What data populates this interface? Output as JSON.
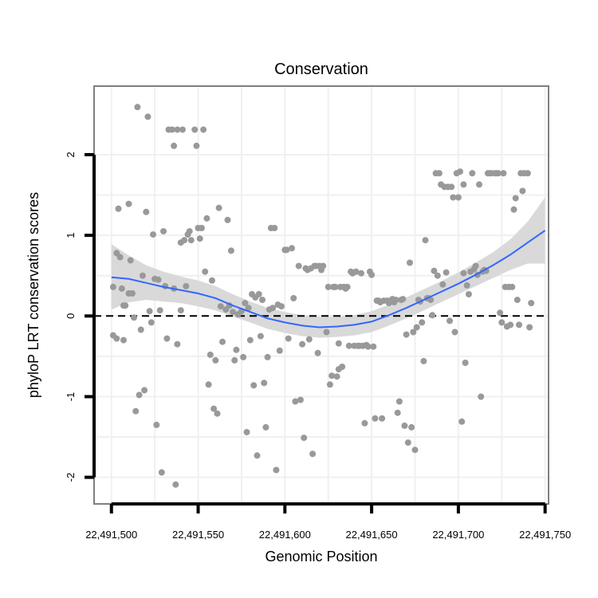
{
  "chart_data": {
    "type": "scatter",
    "title": "Conservation",
    "xlabel": "Genomic Position",
    "ylabel": "phyloP LRT conservation scores",
    "xlim": [
      22491490,
      22491752
    ],
    "ylim": [
      -2.33,
      2.85
    ],
    "x_ticks": [
      {
        "value": 22491500,
        "label": "22,491,500"
      },
      {
        "value": 22491550,
        "label": "22,491,550"
      },
      {
        "value": 22491600,
        "label": "22,491,600"
      },
      {
        "value": 22491650,
        "label": "22,491,650"
      },
      {
        "value": 22491700,
        "label": "22,491,700"
      },
      {
        "value": 22491750,
        "label": "22,491,750"
      }
    ],
    "y_ticks": [
      {
        "value": -2,
        "label": "-2"
      },
      {
        "value": -1,
        "label": "-1"
      },
      {
        "value": 0,
        "label": "0"
      },
      {
        "value": 1,
        "label": "1"
      },
      {
        "value": 2,
        "label": "2"
      }
    ],
    "reference_line": {
      "y": 0,
      "style": "dashed"
    },
    "grid": true,
    "colors": {
      "points": "#999999",
      "smooth_line": "#3366ff",
      "confidence_band": "#d9d9d9",
      "frame": "#7f7f7f",
      "grid": "#f0f0f0"
    },
    "points": [
      [
        22491501,
        0.36
      ],
      [
        22491501,
        -0.24
      ],
      [
        22491503,
        -0.28
      ],
      [
        22491503,
        0.78
      ],
      [
        22491504,
        1.33
      ],
      [
        22491505,
        0.73
      ],
      [
        22491506,
        0.34
      ],
      [
        22491507,
        -0.3
      ],
      [
        22491507,
        0.13
      ],
      [
        22491508,
        0.13
      ],
      [
        22491510,
        1.39
      ],
      [
        22491510,
        0.28
      ],
      [
        22491511,
        0.69
      ],
      [
        22491512,
        0.28
      ],
      [
        22491513,
        -0.02
      ],
      [
        22491514,
        -1.18
      ],
      [
        22491515,
        2.59
      ],
      [
        22491516,
        -0.98
      ],
      [
        22491517,
        -0.17
      ],
      [
        22491518,
        0.5
      ],
      [
        22491519,
        -0.92
      ],
      [
        22491520,
        1.29
      ],
      [
        22491521,
        2.47
      ],
      [
        22491522,
        0.06
      ],
      [
        22491523,
        -0.08
      ],
      [
        22491524,
        1.01
      ],
      [
        22491525,
        0.46
      ],
      [
        22491526,
        -1.35
      ],
      [
        22491527,
        0.45
      ],
      [
        22491528,
        0.07
      ],
      [
        22491529,
        -1.94
      ],
      [
        22491530,
        1.05
      ],
      [
        22491531,
        0.37
      ],
      [
        22491532,
        -0.28
      ],
      [
        22491533,
        2.31
      ],
      [
        22491535,
        2.31
      ],
      [
        22491536,
        2.11
      ],
      [
        22491536,
        0.34
      ],
      [
        22491537,
        -2.09
      ],
      [
        22491538,
        2.31
      ],
      [
        22491538,
        -0.35
      ],
      [
        22491540,
        0.07
      ],
      [
        22491540,
        0.91
      ],
      [
        22491542,
        0.94
      ],
      [
        22491541,
        2.31
      ],
      [
        22491543,
        0.37
      ],
      [
        22491544,
        1.01
      ],
      [
        22491545,
        1.05
      ],
      [
        22491546,
        0.94
      ],
      [
        22491548,
        2.31
      ],
      [
        22491549,
        2.11
      ],
      [
        22491550,
        1.09
      ],
      [
        22491551,
        0.96
      ],
      [
        22491552,
        1.09
      ],
      [
        22491553,
        2.31
      ],
      [
        22491554,
        0.55
      ],
      [
        22491555,
        1.21
      ],
      [
        22491556,
        -0.85
      ],
      [
        22491557,
        -0.48
      ],
      [
        22491558,
        0.44
      ],
      [
        22491559,
        -1.15
      ],
      [
        22491560,
        -0.55
      ],
      [
        22491561,
        -1.21
      ],
      [
        22491562,
        1.34
      ],
      [
        22491563,
        0.12
      ],
      [
        22491564,
        -0.32
      ],
      [
        22491566,
        0.08
      ],
      [
        22491567,
        1.19
      ],
      [
        22491568,
        0.13
      ],
      [
        22491569,
        0.81
      ],
      [
        22491570,
        0.05
      ],
      [
        22491571,
        -0.55
      ],
      [
        22491572,
        -0.42
      ],
      [
        22491573,
        0.02
      ],
      [
        22491575,
        0.06
      ],
      [
        22491576,
        -0.51
      ],
      [
        22491577,
        0.16
      ],
      [
        22491578,
        -1.44
      ],
      [
        22491579,
        0.1
      ],
      [
        22491580,
        -0.3
      ],
      [
        22491581,
        0.27
      ],
      [
        22491582,
        -0.86
      ],
      [
        22491583,
        0.23
      ],
      [
        22491584,
        -1.73
      ],
      [
        22491585,
        0.27
      ],
      [
        22491586,
        -0.25
      ],
      [
        22491587,
        0.2
      ],
      [
        22491588,
        -0.83
      ],
      [
        22491589,
        -1.38
      ],
      [
        22491590,
        -0.51
      ],
      [
        22491591,
        0.08
      ],
      [
        22491592,
        1.09
      ],
      [
        22491593,
        0.1
      ],
      [
        22491594,
        1.09
      ],
      [
        22491595,
        -1.91
      ],
      [
        22491596,
        0.14
      ],
      [
        22491597,
        -0.43
      ],
      [
        22491598,
        0.12
      ],
      [
        22491600,
        0.82
      ],
      [
        22491601,
        0.82
      ],
      [
        22491602,
        -0.28
      ],
      [
        22491604,
        0.84
      ],
      [
        22491605,
        0.22
      ],
      [
        22491606,
        -1.06
      ],
      [
        22491608,
        0.62
      ],
      [
        22491609,
        -1.04
      ],
      [
        22491610,
        -0.35
      ],
      [
        22491611,
        -1.51
      ],
      [
        22491612,
        0.59
      ],
      [
        22491613,
        0.57
      ],
      [
        22491614,
        -0.29
      ],
      [
        22491615,
        0.59
      ],
      [
        22491616,
        -1.71
      ],
      [
        22491617,
        0.62
      ],
      [
        22491618,
        0.62
      ],
      [
        22491619,
        -0.46
      ],
      [
        22491620,
        0.62
      ],
      [
        22491621,
        0.57
      ],
      [
        22491622,
        0.62
      ],
      [
        22491624,
        -0.2
      ],
      [
        22491625,
        0.36
      ],
      [
        22491626,
        -0.85
      ],
      [
        22491627,
        -0.74
      ],
      [
        22491628,
        0.36
      ],
      [
        22491629,
        0.36
      ],
      [
        22491630,
        -0.75
      ],
      [
        22491631,
        -0.66
      ],
      [
        22491631,
        -0.34
      ],
      [
        22491632,
        0.36
      ],
      [
        22491633,
        -0.63
      ],
      [
        22491634,
        0.36
      ],
      [
        22491635,
        0.34
      ],
      [
        22491636,
        0.36
      ],
      [
        22491637,
        -0.37
      ],
      [
        22491638,
        0.55
      ],
      [
        22491639,
        0.53
      ],
      [
        22491640,
        -0.37
      ],
      [
        22491641,
        0.55
      ],
      [
        22491642,
        -0.37
      ],
      [
        22491643,
        -0.37
      ],
      [
        22491644,
        0.53
      ],
      [
        22491645,
        -0.37
      ],
      [
        22491646,
        -1.33
      ],
      [
        22491647,
        -0.36
      ],
      [
        22491648,
        -0.38
      ],
      [
        22491649,
        0.55
      ],
      [
        22491650,
        0.51
      ],
      [
        22491651,
        -0.38
      ],
      [
        22491652,
        -1.27
      ],
      [
        22491653,
        0.19
      ],
      [
        22491654,
        0.19
      ],
      [
        22491655,
        0.17
      ],
      [
        22491656,
        -1.27
      ],
      [
        22491657,
        0.19
      ],
      [
        22491659,
        0.19
      ],
      [
        22491660,
        0.16
      ],
      [
        22491661,
        0.19
      ],
      [
        22491662,
        0.21
      ],
      [
        22491663,
        0.17
      ],
      [
        22491664,
        0.2
      ],
      [
        22491665,
        -1.2
      ],
      [
        22491666,
        -1.06
      ],
      [
        22491667,
        0.2
      ],
      [
        22491668,
        0.21
      ],
      [
        22491669,
        -1.36
      ],
      [
        22491670,
        -0.23
      ],
      [
        22491671,
        -1.57
      ],
      [
        22491672,
        0.66
      ],
      [
        22491673,
        -1.38
      ],
      [
        22491674,
        -0.2
      ],
      [
        22491675,
        -1.66
      ],
      [
        22491676,
        -0.14
      ],
      [
        22491677,
        0.2
      ],
      [
        22491678,
        0.18
      ],
      [
        22491679,
        -0.08
      ],
      [
        22491680,
        -0.56
      ],
      [
        22491681,
        0.94
      ],
      [
        22491682,
        0.22
      ],
      [
        22491683,
        0.22
      ],
      [
        22491684,
        0.2
      ],
      [
        22491685,
        0.01
      ],
      [
        22491686,
        0.56
      ],
      [
        22491687,
        1.77
      ],
      [
        22491688,
        0.5
      ],
      [
        22491689,
        1.77
      ],
      [
        22491690,
        1.63
      ],
      [
        22491691,
        0.39
      ],
      [
        22491692,
        1.6
      ],
      [
        22491693,
        0.54
      ],
      [
        22491694,
        1.6
      ],
      [
        22491695,
        -0.06
      ],
      [
        22491696,
        1.6
      ],
      [
        22491697,
        1.47
      ],
      [
        22491698,
        -0.2
      ],
      [
        22491699,
        1.77
      ],
      [
        22491700,
        1.47
      ],
      [
        22491701,
        1.79
      ],
      [
        22491702,
        -1.31
      ],
      [
        22491703,
        0.53
      ],
      [
        22491703,
        1.63
      ],
      [
        22491704,
        -0.58
      ],
      [
        22491705,
        0.38
      ],
      [
        22491706,
        0.27
      ],
      [
        22491707,
        0.55
      ],
      [
        22491708,
        1.77
      ],
      [
        22491709,
        0.58
      ],
      [
        22491710,
        0.62
      ],
      [
        22491711,
        0.51
      ],
      [
        22491712,
        1.63
      ],
      [
        22491713,
        -1.0
      ],
      [
        22491714,
        0.55
      ],
      [
        22491715,
        0.57
      ],
      [
        22491716,
        0.56
      ],
      [
        22491717,
        1.77
      ],
      [
        22491718,
        1.77
      ],
      [
        22491719,
        1.77
      ],
      [
        22491721,
        1.77
      ],
      [
        22491722,
        1.77
      ],
      [
        22491723,
        1.77
      ],
      [
        22491724,
        0.04
      ],
      [
        22491725,
        -0.08
      ],
      [
        22491726,
        1.77
      ],
      [
        22491727,
        0.36
      ],
      [
        22491728,
        -0.13
      ],
      [
        22491729,
        0.36
      ],
      [
        22491730,
        -0.11
      ],
      [
        22491731,
        0.36
      ],
      [
        22491732,
        1.32
      ],
      [
        22491733,
        1.46
      ],
      [
        22491734,
        0.2
      ],
      [
        22491735,
        -0.11
      ],
      [
        22491736,
        1.77
      ],
      [
        22491737,
        1.55
      ],
      [
        22491738,
        1.77
      ],
      [
        22491740,
        1.77
      ],
      [
        22491741,
        -0.14
      ],
      [
        22491742,
        0.16
      ]
    ],
    "smooth_curve": [
      [
        22491500,
        0.48
      ],
      [
        22491510,
        0.46
      ],
      [
        22491520,
        0.41
      ],
      [
        22491530,
        0.36
      ],
      [
        22491540,
        0.32
      ],
      [
        22491550,
        0.28
      ],
      [
        22491560,
        0.22
      ],
      [
        22491570,
        0.13
      ],
      [
        22491580,
        0.05
      ],
      [
        22491590,
        -0.03
      ],
      [
        22491600,
        -0.08
      ],
      [
        22491610,
        -0.12
      ],
      [
        22491620,
        -0.14
      ],
      [
        22491630,
        -0.13
      ],
      [
        22491640,
        -0.11
      ],
      [
        22491650,
        -0.07
      ],
      [
        22491660,
        0.01
      ],
      [
        22491670,
        0.1
      ],
      [
        22491680,
        0.2
      ],
      [
        22491690,
        0.3
      ],
      [
        22491700,
        0.4
      ],
      [
        22491710,
        0.51
      ],
      [
        22491720,
        0.63
      ],
      [
        22491730,
        0.76
      ],
      [
        22491740,
        0.91
      ],
      [
        22491750,
        1.06
      ]
    ],
    "band_upper": [
      [
        22491500,
        0.89
      ],
      [
        22491510,
        0.75
      ],
      [
        22491520,
        0.63
      ],
      [
        22491530,
        0.55
      ],
      [
        22491540,
        0.49
      ],
      [
        22491550,
        0.44
      ],
      [
        22491560,
        0.37
      ],
      [
        22491570,
        0.27
      ],
      [
        22491580,
        0.18
      ],
      [
        22491590,
        0.1
      ],
      [
        22491600,
        0.05
      ],
      [
        22491610,
        0.01
      ],
      [
        22491620,
        -0.01
      ],
      [
        22491630,
        -0.01
      ],
      [
        22491640,
        0.01
      ],
      [
        22491650,
        0.06
      ],
      [
        22491660,
        0.14
      ],
      [
        22491670,
        0.23
      ],
      [
        22491680,
        0.33
      ],
      [
        22491690,
        0.43
      ],
      [
        22491700,
        0.54
      ],
      [
        22491710,
        0.66
      ],
      [
        22491720,
        0.79
      ],
      [
        22491730,
        0.95
      ],
      [
        22491740,
        1.17
      ],
      [
        22491750,
        1.47
      ]
    ],
    "band_lower": [
      [
        22491500,
        0.08
      ],
      [
        22491510,
        0.17
      ],
      [
        22491520,
        0.2
      ],
      [
        22491530,
        0.18
      ],
      [
        22491540,
        0.16
      ],
      [
        22491550,
        0.12
      ],
      [
        22491560,
        0.07
      ],
      [
        22491570,
        -0.01
      ],
      [
        22491580,
        -0.08
      ],
      [
        22491590,
        -0.16
      ],
      [
        22491600,
        -0.21
      ],
      [
        22491610,
        -0.25
      ],
      [
        22491620,
        -0.27
      ],
      [
        22491630,
        -0.26
      ],
      [
        22491640,
        -0.24
      ],
      [
        22491650,
        -0.2
      ],
      [
        22491660,
        -0.12
      ],
      [
        22491670,
        -0.03
      ],
      [
        22491680,
        0.07
      ],
      [
        22491690,
        0.17
      ],
      [
        22491700,
        0.27
      ],
      [
        22491710,
        0.37
      ],
      [
        22491720,
        0.47
      ],
      [
        22491730,
        0.57
      ],
      [
        22491740,
        0.65
      ],
      [
        22491750,
        0.65
      ]
    ]
  }
}
